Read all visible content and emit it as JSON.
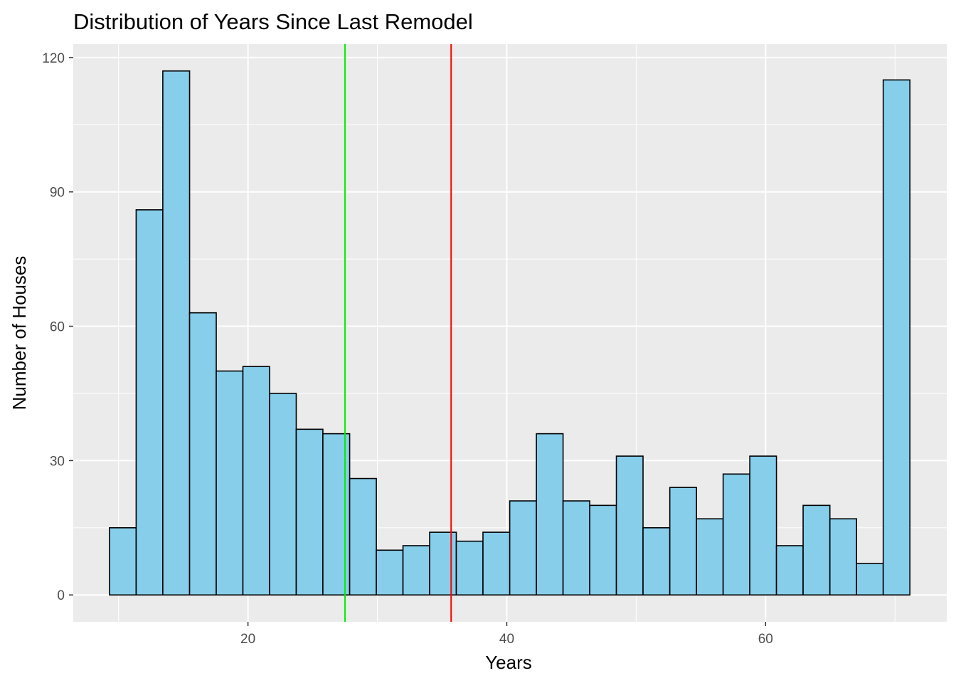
{
  "chart_data": {
    "type": "bar",
    "title": "Distribution of Years Since Last Remodel",
    "xlabel": "Years",
    "ylabel": "Number of Houses",
    "xlim": [
      6.5,
      74
    ],
    "ylim": [
      -6,
      123
    ],
    "x_ticks": [
      20,
      40,
      60
    ],
    "x_tick_labels": [
      "20",
      "40",
      "60"
    ],
    "y_ticks": [
      0,
      30,
      60,
      90,
      120
    ],
    "y_tick_labels": [
      "0",
      "30",
      "60",
      "90",
      "120"
    ],
    "bin_edges": [
      9.3,
      11.36,
      13.42,
      15.49,
      17.55,
      19.61,
      21.67,
      23.73,
      25.79,
      27.86,
      29.92,
      31.98,
      34.04,
      36.1,
      38.16,
      40.23,
      42.29,
      44.35,
      46.41,
      48.47,
      50.53,
      52.6,
      54.66,
      56.72,
      58.78,
      60.84,
      62.9,
      64.97,
      67.03,
      69.09,
      71.15
    ],
    "values": [
      15,
      86,
      117,
      63,
      50,
      51,
      45,
      37,
      36,
      26,
      10,
      11,
      14,
      12,
      14,
      21,
      36,
      21,
      20,
      31,
      15,
      24,
      17,
      27,
      31,
      11,
      20,
      17,
      7,
      115
    ],
    "vlines": [
      {
        "x": 27.5,
        "color": "#00ee00"
      },
      {
        "x": 35.7,
        "color": "#ff0000"
      }
    ],
    "bar_fill": "#87ceeb",
    "bar_stroke": "#000000",
    "panel_background": "#ebebeb",
    "grid": true,
    "legend": "none"
  }
}
